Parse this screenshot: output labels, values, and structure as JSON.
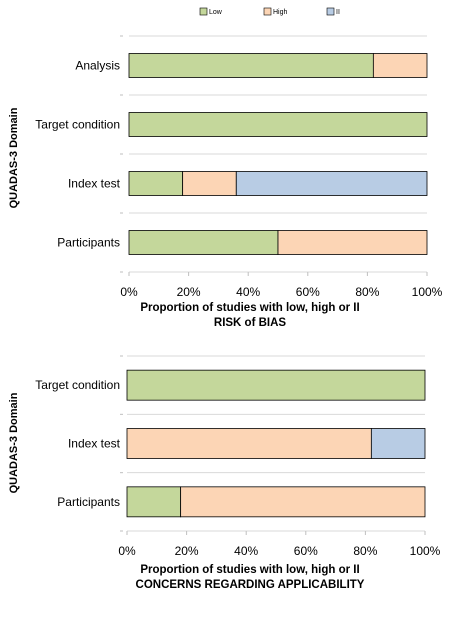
{
  "legend": [
    {
      "label": "Low",
      "color": "#c4d79b"
    },
    {
      "label": "High",
      "color": "#fcd5b5"
    },
    {
      "label": "II",
      "color": "#b8cce4"
    }
  ],
  "chart_data": [
    {
      "type": "bar",
      "orientation": "horizontal",
      "stacked": true,
      "title": "RISK of BIAS",
      "xlabel": "Proportion of studies with low, high or II",
      "ylabel": "QUADAS-3 Domain",
      "xlim": [
        0,
        100
      ],
      "x_tick_labels": [
        "0%",
        "20%",
        "40%",
        "60%",
        "80%",
        "100%"
      ],
      "categories": [
        "Analysis",
        "Target condition",
        "Index test",
        "Participants"
      ],
      "series": [
        {
          "name": "Low",
          "values": [
            82,
            100,
            18,
            50
          ]
        },
        {
          "name": "High",
          "values": [
            18,
            0,
            18,
            50
          ]
        },
        {
          "name": "II",
          "values": [
            0,
            0,
            64,
            0
          ]
        }
      ]
    },
    {
      "type": "bar",
      "orientation": "horizontal",
      "stacked": true,
      "title": "CONCERNS REGARDING APPLICABILITY",
      "xlabel": "Proportion of studies with low, high or II",
      "ylabel": "QUADAS-3 Domain",
      "xlim": [
        0,
        100
      ],
      "x_tick_labels": [
        "0%",
        "20%",
        "40%",
        "60%",
        "80%",
        "100%"
      ],
      "categories": [
        "Target condition",
        "Index test",
        "Participants"
      ],
      "series": [
        {
          "name": "Low",
          "values": [
            100,
            0,
            18
          ]
        },
        {
          "name": "High",
          "values": [
            0,
            82,
            82
          ]
        },
        {
          "name": "II",
          "values": [
            0,
            18,
            0
          ]
        }
      ]
    }
  ]
}
